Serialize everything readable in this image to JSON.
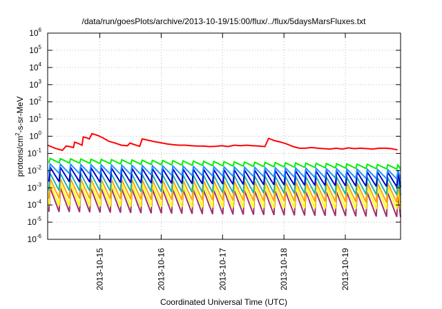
{
  "chart_data": {
    "type": "line",
    "title": "/data/run/goesPlots/archive/2013-10-19/15:00/flux/../flux/5daysMarsFluxes.txt",
    "xlabel": "Coordinated Universal Time (UTC)",
    "ylabel_base": "protons/cm",
    "ylabel_exp": "2",
    "ylabel_rest": "-s-sr-MeV",
    "yscale": "log",
    "ylim": [
      1e-06,
      1000000.0
    ],
    "xlim": [
      0,
      5.75
    ],
    "x_origin_note": "",
    "y_ticks": [
      {
        "base": "10",
        "exp": "-6",
        "value": 1e-06
      },
      {
        "base": "10",
        "exp": "-5",
        "value": 1e-05
      },
      {
        "base": "10",
        "exp": "-4",
        "value": 0.0001
      },
      {
        "base": "10",
        "exp": "-3",
        "value": 0.001
      },
      {
        "base": "10",
        "exp": "-2",
        "value": 0.01
      },
      {
        "base": "10",
        "exp": "-1",
        "value": 0.1
      },
      {
        "base": "10",
        "exp": "0",
        "value": 1
      },
      {
        "base": "10",
        "exp": "1",
        "value": 10
      },
      {
        "base": "10",
        "exp": "2",
        "value": 100
      },
      {
        "base": "10",
        "exp": "3",
        "value": 1000
      },
      {
        "base": "10",
        "exp": "4",
        "value": 10000
      },
      {
        "base": "10",
        "exp": "5",
        "value": 100000
      },
      {
        "base": "10",
        "exp": "6",
        "value": 1000000
      }
    ],
    "x_ticks": [
      {
        "label": "2013-10-15",
        "value": 0.85
      },
      {
        "label": "2013-10-16",
        "value": 1.85
      },
      {
        "label": "2013-10-17",
        "value": 2.85
      },
      {
        "label": "2013-10-18",
        "value": 3.85
      },
      {
        "label": "2013-10-19",
        "value": 4.85
      }
    ],
    "grid": true,
    "series": [
      {
        "color": "#ff0000",
        "points": [
          [
            0.0,
            0.3
          ],
          [
            0.12,
            0.2
          ],
          [
            0.24,
            0.15
          ],
          [
            0.3,
            0.27
          ],
          [
            0.36,
            0.25
          ],
          [
            0.42,
            0.22
          ],
          [
            0.44,
            0.45
          ],
          [
            0.5,
            0.38
          ],
          [
            0.56,
            0.3
          ],
          [
            0.58,
            0.9
          ],
          [
            0.64,
            0.8
          ],
          [
            0.68,
            0.7
          ],
          [
            0.72,
            1.4
          ],
          [
            0.76,
            1.3
          ],
          [
            0.82,
            1.1
          ],
          [
            0.9,
            0.8
          ],
          [
            1.0,
            0.5
          ],
          [
            1.1,
            0.4
          ],
          [
            1.2,
            0.3
          ],
          [
            1.3,
            0.28
          ],
          [
            1.34,
            0.4
          ],
          [
            1.44,
            0.3
          ],
          [
            1.5,
            0.26
          ],
          [
            1.54,
            0.7
          ],
          [
            1.64,
            0.58
          ],
          [
            1.74,
            0.48
          ],
          [
            1.84,
            0.42
          ],
          [
            1.94,
            0.36
          ],
          [
            2.04,
            0.32
          ],
          [
            2.14,
            0.3
          ],
          [
            2.24,
            0.3
          ],
          [
            2.34,
            0.28
          ],
          [
            2.44,
            0.27
          ],
          [
            2.54,
            0.27
          ],
          [
            2.64,
            0.25
          ],
          [
            2.74,
            0.26
          ],
          [
            2.84,
            0.28
          ],
          [
            2.94,
            0.25
          ],
          [
            3.04,
            0.3
          ],
          [
            3.14,
            0.28
          ],
          [
            3.24,
            0.3
          ],
          [
            3.34,
            0.28
          ],
          [
            3.44,
            0.27
          ],
          [
            3.54,
            0.25
          ],
          [
            3.6,
            0.75
          ],
          [
            3.7,
            0.55
          ],
          [
            3.8,
            0.45
          ],
          [
            3.9,
            0.35
          ],
          [
            4.0,
            0.25
          ],
          [
            4.1,
            0.2
          ],
          [
            4.2,
            0.2
          ],
          [
            4.3,
            0.22
          ],
          [
            4.4,
            0.2
          ],
          [
            4.5,
            0.19
          ],
          [
            4.6,
            0.18
          ],
          [
            4.7,
            0.2
          ],
          [
            4.8,
            0.18
          ],
          [
            4.9,
            0.21
          ],
          [
            5.0,
            0.19
          ],
          [
            5.1,
            0.2
          ],
          [
            5.2,
            0.19
          ],
          [
            5.3,
            0.18
          ],
          [
            5.4,
            0.2
          ],
          [
            5.5,
            0.2
          ],
          [
            5.6,
            0.19
          ],
          [
            5.7,
            0.16
          ]
        ]
      },
      {
        "color": "#00ee00",
        "sawtooth": {
          "start": 0.038,
          "end": 0.016,
          "ratio": 1.8
        }
      },
      {
        "color": "#1e90ff",
        "sawtooth": {
          "start": 0.013,
          "end": 0.006,
          "ratio": 3.5
        }
      },
      {
        "color": "#0000cd",
        "sawtooth": {
          "start": 0.006,
          "end": 0.003,
          "ratio": 7
        }
      },
      {
        "color": "#20b2aa",
        "sawtooth": {
          "start": 0.0022,
          "end": 0.0012,
          "ratio": 10
        }
      },
      {
        "color": "#ffa500",
        "sawtooth": {
          "start": 0.0009,
          "end": 0.0005,
          "ratio": 14
        }
      },
      {
        "color": "#ffff00",
        "sawtooth": {
          "start": 0.0004,
          "end": 0.00025,
          "ratio": 20
        }
      },
      {
        "color": "#a03070",
        "sawtooth": {
          "start": 0.0002,
          "end": 0.0001,
          "ratio": 25
        }
      }
    ]
  }
}
